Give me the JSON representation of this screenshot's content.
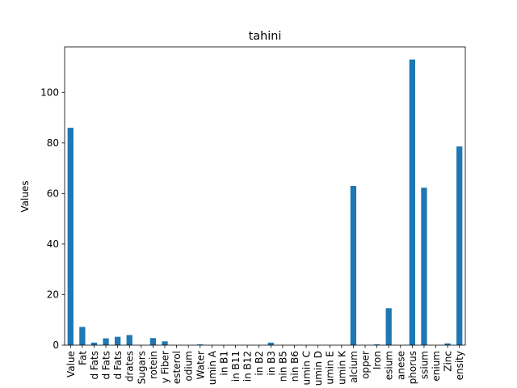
{
  "chart_data": {
    "type": "bar",
    "title": "tahini",
    "xlabel": "",
    "ylabel": "Values",
    "ylim": [
      0,
      118
    ],
    "yticks": [
      0,
      20,
      40,
      60,
      80,
      100
    ],
    "bar_color": "#1f77b4",
    "grid": false,
    "legend": "none",
    "categories": [
      "Value",
      "Fat",
      "d Fats",
      "d Fats",
      "d Fats",
      "drates",
      "Sugars",
      "rotein",
      "y Fiber",
      "esterol",
      "odium",
      "Water",
      "umin A",
      "in B1",
      "in B11",
      "in B12",
      "in B2",
      "in B3",
      "nin B5",
      "nin B6",
      "umin C",
      "umin D",
      "umin E",
      "umin K",
      "alcium",
      "opper",
      "Iron",
      "esium",
      "anese",
      "phorus",
      "ssium",
      "enium",
      "Zinc",
      "ensity"
    ],
    "values": [
      86,
      7.2,
      1.0,
      2.7,
      3.3,
      4.0,
      0,
      2.8,
      1.5,
      0,
      0,
      0.3,
      0,
      0,
      0,
      0,
      0,
      1.0,
      0,
      0,
      0,
      0,
      0,
      0,
      63,
      0,
      0.3,
      14.6,
      0,
      113,
      62.3,
      0,
      0.7,
      78.6
    ]
  }
}
